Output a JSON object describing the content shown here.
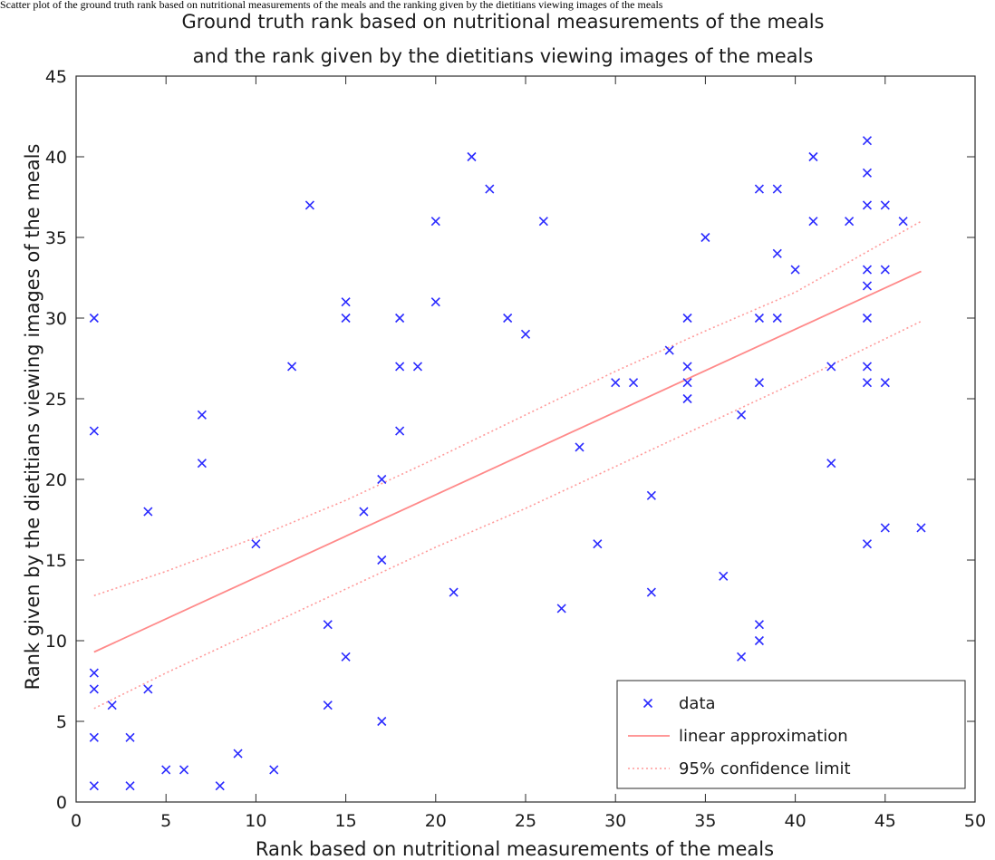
{
  "caption": "Scatter plot of the ground truth rank based on nutritional measurements of the meals and the ranking given by the dietitians viewing images of the meals",
  "chart_data": {
    "type": "scatter",
    "title": [
      "Ground truth rank based on nutritional measurements of the meals",
      "and the rank given by the dietitians viewing images of the meals"
    ],
    "xlabel": "Rank based on nutritional measurements of the meals",
    "ylabel": "Rank given by the dietitians viewing images of the meals",
    "xlim": [
      0,
      50
    ],
    "ylim": [
      0,
      45
    ],
    "xticks": [
      0,
      5,
      10,
      15,
      20,
      25,
      30,
      35,
      40,
      45,
      50
    ],
    "yticks": [
      0,
      5,
      10,
      15,
      20,
      25,
      30,
      35,
      40,
      45
    ],
    "grid": false,
    "legend_position": "bottom-right",
    "series": [
      {
        "name": "data",
        "marker": "x",
        "color": "#2b2bff",
        "points": [
          [
            1,
            30
          ],
          [
            1,
            23
          ],
          [
            1,
            8
          ],
          [
            1,
            7
          ],
          [
            1,
            4
          ],
          [
            1,
            1
          ],
          [
            2,
            6
          ],
          [
            3,
            4
          ],
          [
            3,
            1
          ],
          [
            4,
            18
          ],
          [
            4,
            7
          ],
          [
            5,
            2
          ],
          [
            6,
            2
          ],
          [
            7,
            24
          ],
          [
            7,
            21
          ],
          [
            8,
            1
          ],
          [
            9,
            3
          ],
          [
            10,
            16
          ],
          [
            11,
            2
          ],
          [
            12,
            27
          ],
          [
            13,
            37
          ],
          [
            14,
            11
          ],
          [
            14,
            6
          ],
          [
            15,
            31
          ],
          [
            15,
            30
          ],
          [
            15,
            9
          ],
          [
            16,
            18
          ],
          [
            17,
            20
          ],
          [
            17,
            15
          ],
          [
            17,
            5
          ],
          [
            18,
            30
          ],
          [
            18,
            27
          ],
          [
            18,
            23
          ],
          [
            19,
            27
          ],
          [
            20,
            36
          ],
          [
            20,
            31
          ],
          [
            21,
            13
          ],
          [
            22,
            40
          ],
          [
            23,
            38
          ],
          [
            24,
            30
          ],
          [
            25,
            29
          ],
          [
            26,
            36
          ],
          [
            27,
            12
          ],
          [
            28,
            22
          ],
          [
            29,
            16
          ],
          [
            30,
            26
          ],
          [
            31,
            26
          ],
          [
            32,
            19
          ],
          [
            32,
            13
          ],
          [
            33,
            28
          ],
          [
            34,
            30
          ],
          [
            34,
            27
          ],
          [
            34,
            26
          ],
          [
            34,
            25
          ],
          [
            35,
            35
          ],
          [
            36,
            14
          ],
          [
            37,
            24
          ],
          [
            37,
            9
          ],
          [
            38,
            38
          ],
          [
            38,
            30
          ],
          [
            38,
            26
          ],
          [
            38,
            11
          ],
          [
            38,
            10
          ],
          [
            39,
            38
          ],
          [
            39,
            34
          ],
          [
            39,
            30
          ],
          [
            40,
            33
          ],
          [
            41,
            40
          ],
          [
            41,
            36
          ],
          [
            42,
            27
          ],
          [
            42,
            21
          ],
          [
            43,
            36
          ],
          [
            44,
            41
          ],
          [
            44,
            39
          ],
          [
            44,
            37
          ],
          [
            44,
            33
          ],
          [
            44,
            32
          ],
          [
            44,
            30
          ],
          [
            44,
            27
          ],
          [
            44,
            26
          ],
          [
            44,
            16
          ],
          [
            45,
            37
          ],
          [
            45,
            33
          ],
          [
            45,
            26
          ],
          [
            45,
            17
          ],
          [
            46,
            36
          ],
          [
            47,
            17
          ]
        ]
      },
      {
        "name": "linear approximation",
        "line": "solid",
        "color": "#ff8a8a",
        "points": [
          [
            1,
            9.3
          ],
          [
            47,
            32.9
          ]
        ]
      },
      {
        "name": "95% confidence limit",
        "line": "dotted",
        "color": "#ff9a9a",
        "upper": [
          [
            1,
            12.8
          ],
          [
            5,
            14.3
          ],
          [
            10,
            16.4
          ],
          [
            15,
            18.7
          ],
          [
            20,
            21.3
          ],
          [
            25,
            24.0
          ],
          [
            30,
            26.7
          ],
          [
            35,
            29.2
          ],
          [
            40,
            31.6
          ],
          [
            47,
            36.0
          ]
        ],
        "lower": [
          [
            1,
            5.8
          ],
          [
            5,
            8.0
          ],
          [
            10,
            10.6
          ],
          [
            15,
            13.2
          ],
          [
            20,
            15.8
          ],
          [
            25,
            18.2
          ],
          [
            30,
            20.8
          ],
          [
            35,
            23.4
          ],
          [
            40,
            26.0
          ],
          [
            47,
            29.8
          ]
        ]
      }
    ]
  }
}
